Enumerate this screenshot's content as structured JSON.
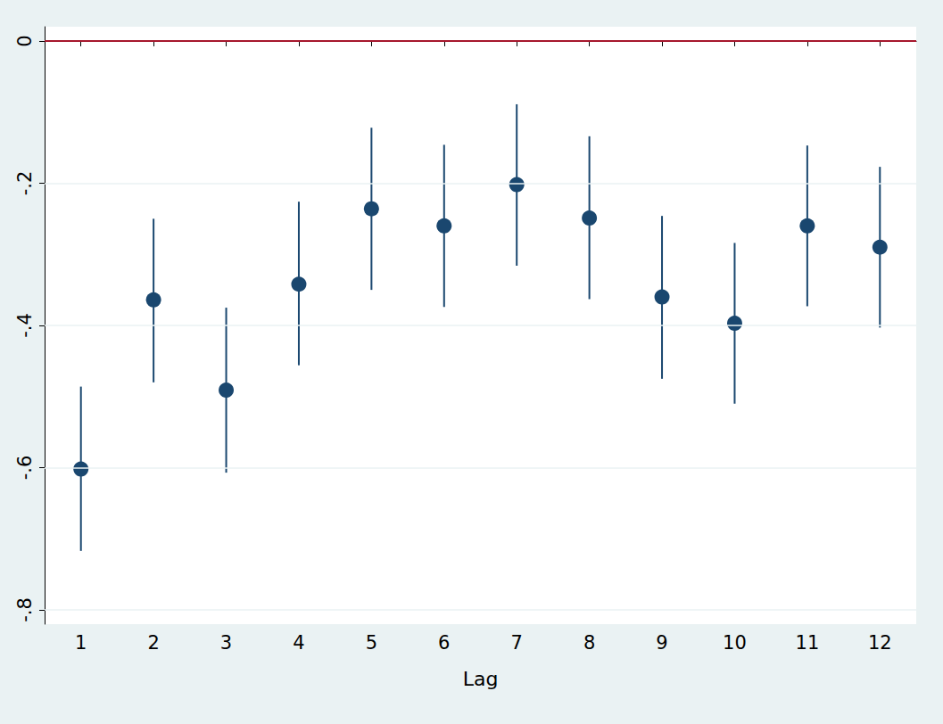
{
  "chart_data": {
    "type": "scatter",
    "x_label": "Lag",
    "categories": [
      "1",
      "2",
      "3",
      "4",
      "5",
      "6",
      "7",
      "8",
      "9",
      "10",
      "11",
      "12"
    ],
    "series": [
      {
        "color": "#1a476f",
        "marker": "circle",
        "values": [
          -0.602,
          -0.364,
          -0.491,
          -0.342,
          -0.236,
          -0.26,
          -0.202,
          -0.249,
          -0.36,
          -0.397,
          -0.26,
          -0.29
        ],
        "ci_low": [
          -0.717,
          -0.48,
          -0.607,
          -0.456,
          -0.35,
          -0.374,
          -0.316,
          -0.363,
          -0.475,
          -0.51,
          -0.373,
          -0.403
        ],
        "ci_high": [
          -0.486,
          -0.25,
          -0.375,
          -0.226,
          -0.122,
          -0.146,
          -0.089,
          -0.134,
          -0.246,
          -0.284,
          -0.147,
          -0.177
        ]
      }
    ],
    "reference_line": {
      "y": 0,
      "color": "#a6172d"
    },
    "ylim": [
      -0.82,
      0.02
    ],
    "yticks": [
      {
        "value": -0.8,
        "label": "-.8"
      },
      {
        "value": -0.6,
        "label": "-.6"
      },
      {
        "value": -0.4,
        "label": "-.4"
      },
      {
        "value": -0.2,
        "label": "-.2"
      },
      0
    ],
    "grid": true
  }
}
